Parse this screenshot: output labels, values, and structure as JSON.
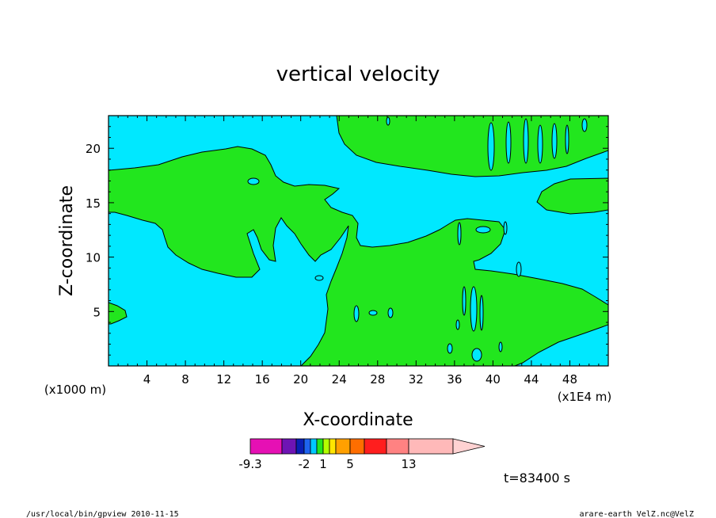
{
  "chart_data": {
    "type": "heatmap",
    "title": "vertical velocity",
    "xlabel": "X-coordinate",
    "ylabel": "Z-coordinate",
    "x_unit_left": "(x1000 m)",
    "x_unit_right": "(x1E4 m)",
    "xlim": [
      0,
      52
    ],
    "ylim": [
      0,
      23
    ],
    "x_ticks": [
      4,
      8,
      12,
      16,
      20,
      24,
      28,
      32,
      36,
      40,
      44,
      48
    ],
    "y_ticks": [
      5,
      10,
      15,
      20
    ],
    "colors": {
      "negative_region": "#00e8ff",
      "positive_region": "#22e61e",
      "contour_line": "#000000"
    },
    "colorbar": {
      "levels": [
        -9.3,
        -8,
        -5,
        -2,
        -1,
        0,
        1,
        2,
        3,
        5,
        7,
        9,
        13,
        20
      ],
      "labels": [
        "-9.3",
        "-2",
        "1",
        "5",
        "13"
      ],
      "colors": [
        "#e610b4",
        "#6e14b4",
        "#0a1eb4",
        "#1e64f0",
        "#00c8ff",
        "#22e61e",
        "#b4ff00",
        "#ffe600",
        "#ffa000",
        "#ff6e00",
        "#ff1e1e",
        "#ff8282",
        "#ffb9b9",
        "#ffd2d2"
      ]
    },
    "time_label": "t=83400 s"
  },
  "footer": {
    "left": "/usr/local/bin/gpview  2010-11-15",
    "right": "arare-earth_VelZ.nc@VelZ"
  }
}
